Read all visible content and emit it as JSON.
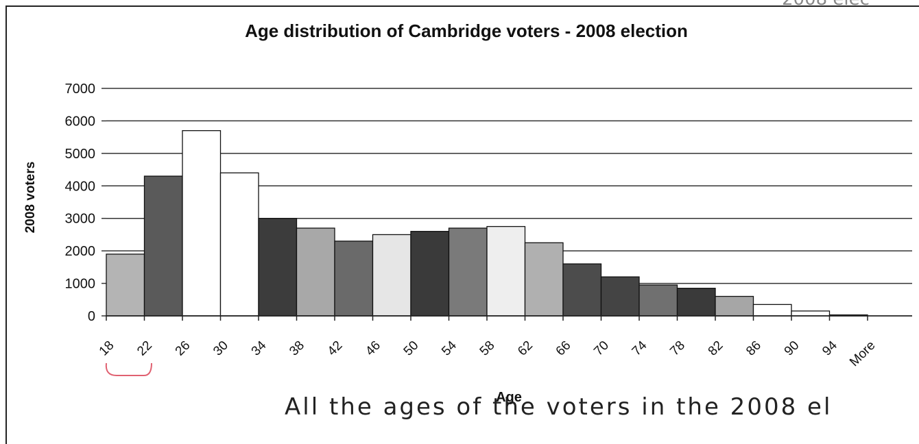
{
  "chart_data": {
    "type": "bar",
    "title": "Age distribution of Cambridge voters - 2008 election",
    "xlabel": "Age",
    "ylabel": "2008 voters",
    "ylim": [
      0,
      7000
    ],
    "yticks": [
      "0",
      "1000",
      "2000",
      "3000",
      "4000",
      "5000",
      "6000",
      "7000"
    ],
    "categories": [
      "18",
      "22",
      "26",
      "30",
      "34",
      "38",
      "42",
      "46",
      "50",
      "54",
      "58",
      "62",
      "66",
      "70",
      "74",
      "78",
      "82",
      "86",
      "90",
      "94",
      "More"
    ],
    "values": [
      1900,
      4300,
      5700,
      4400,
      3000,
      2700,
      2300,
      2500,
      2600,
      2700,
      2750,
      2250,
      1600,
      1200,
      950,
      850,
      600,
      350,
      150,
      30,
      0
    ],
    "colors": [
      "#b4b4b4",
      "#5a5a5a",
      "#ffffff",
      "#ffffff",
      "#3c3c3c",
      "#a8a8a8",
      "#6a6a6a",
      "#e6e6e6",
      "#3a3a3a",
      "#7a7a7a",
      "#eeeeee",
      "#b0b0b0",
      "#4c4c4c",
      "#444444",
      "#707070",
      "#3a3a3a",
      "#a6a6a6",
      "#ffffff",
      "#ffffff",
      "#ffffff",
      "#ffffff"
    ],
    "grid": true,
    "legend": "none"
  },
  "annotations": {
    "handwritten_note": "All the ages of the voters in the 2008 el",
    "corner_note": "2008 elec"
  }
}
